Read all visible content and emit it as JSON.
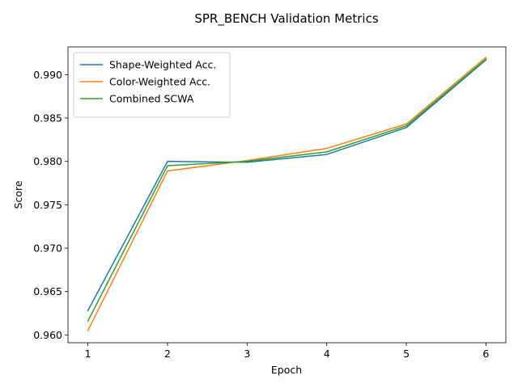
{
  "chart_data": {
    "type": "line",
    "title": "SPR_BENCH Validation Metrics",
    "xlabel": "Epoch",
    "ylabel": "Score",
    "x": [
      1,
      2,
      3,
      4,
      5,
      6
    ],
    "xlim": [
      0.75,
      6.25
    ],
    "ylim": [
      0.9591,
      0.9932
    ],
    "xticks": [
      1,
      2,
      3,
      4,
      5,
      6
    ],
    "yticks": [
      0.96,
      0.965,
      0.97,
      0.975,
      0.98,
      0.985,
      0.99
    ],
    "ytick_labels": [
      "0.960",
      "0.965",
      "0.970",
      "0.975",
      "0.980",
      "0.985",
      "0.990"
    ],
    "grid": false,
    "legend_position": "top-left",
    "series": [
      {
        "name": "Shape-Weighted Acc.",
        "color": "#1f77b4",
        "values": [
          0.9628,
          0.98,
          0.9799,
          0.9808,
          0.9839,
          0.9917
        ]
      },
      {
        "name": "Color-Weighted Acc.",
        "color": "#ff7f0e",
        "values": [
          0.9605,
          0.9789,
          0.9801,
          0.9815,
          0.9843,
          0.992
        ]
      },
      {
        "name": "Combined SCWA",
        "color": "#2ca02c",
        "values": [
          0.9616,
          0.9795,
          0.98,
          0.9811,
          0.9841,
          0.9918
        ]
      }
    ]
  }
}
